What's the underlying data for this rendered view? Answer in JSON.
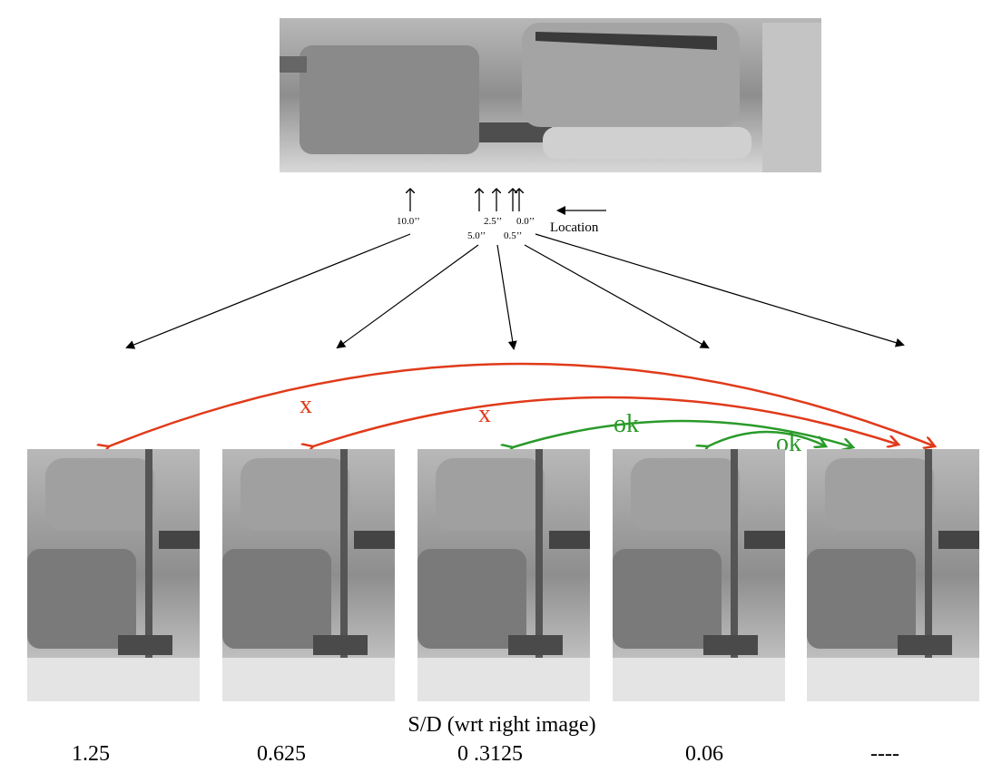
{
  "location_labels": [
    "10.0’’",
    "5.0’’",
    "2.5’’",
    "0.5’’",
    "0.0’’"
  ],
  "location_caption": "Location",
  "comparisons": [
    "x",
    "x",
    "ok",
    "ok"
  ],
  "caption": "S/D (wrt right image)",
  "ratios": [
    "1.25",
    "0.625",
    "0 .3125",
    "0.06",
    "----"
  ]
}
